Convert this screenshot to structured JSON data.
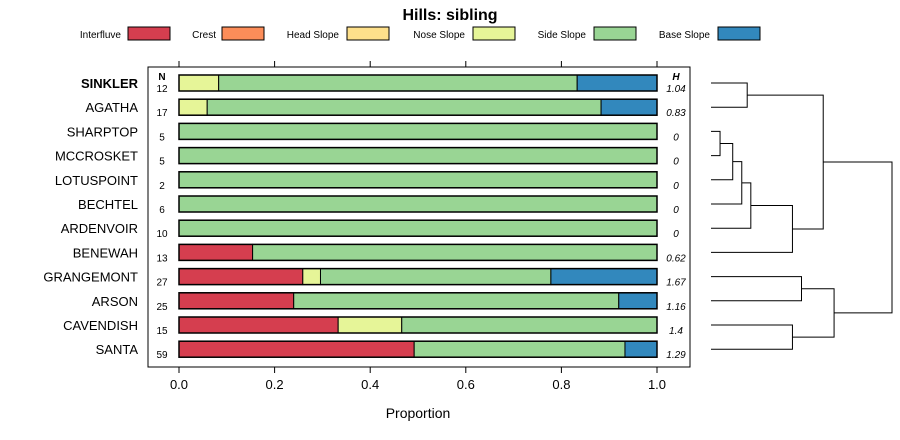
{
  "chart_data": {
    "type": "bar",
    "orientation": "horizontal",
    "stacked": true,
    "title": "Hills: sibling",
    "xlabel": "Proportion",
    "ylabel": "",
    "xlim": [
      0,
      1
    ],
    "x_ticks": [
      "0.0",
      "0.2",
      "0.4",
      "0.6",
      "0.8",
      "1.0"
    ],
    "x_tick_values": [
      0,
      0.2,
      0.4,
      0.6,
      0.8,
      1.0
    ],
    "n_header": "N",
    "h_header": "H",
    "highlight_category": "SINKLER",
    "legend_position": "top",
    "legend": [
      {
        "name": "Interfluve",
        "color": "#D53E4F"
      },
      {
        "name": "Crest",
        "color": "#FC8D59"
      },
      {
        "name": "Head Slope",
        "color": "#FEE08B"
      },
      {
        "name": "Nose Slope",
        "color": "#E6F598"
      },
      {
        "name": "Side Slope",
        "color": "#99D594"
      },
      {
        "name": "Base Slope",
        "color": "#3288BD"
      }
    ],
    "categories": [
      "SINKLER",
      "AGATHA",
      "SHARPTOP",
      "MCCROSKET",
      "LOTUSPOINT",
      "BECHTEL",
      "ARDENVOIR",
      "BENEWAH",
      "GRANGEMONT",
      "ARSON",
      "CAVENDISH",
      "SANTA"
    ],
    "n_values": [
      "12",
      "17",
      "5",
      "5",
      "2",
      "6",
      "10",
      "13",
      "27",
      "25",
      "15",
      "59"
    ],
    "h_values": [
      "1.04",
      "0.83",
      "0",
      "0",
      "0",
      "0",
      "0",
      "0.62",
      "1.67",
      "1.16",
      "1.4",
      "1.29"
    ],
    "series": [
      {
        "name": "Interfluve",
        "values": [
          0,
          0,
          0,
          0,
          0,
          0,
          0,
          0.154,
          0.259,
          0.24,
          0.333,
          0.492
        ]
      },
      {
        "name": "Crest",
        "values": [
          0,
          0,
          0,
          0,
          0,
          0,
          0,
          0,
          0,
          0,
          0,
          0
        ]
      },
      {
        "name": "Head Slope",
        "values": [
          0,
          0,
          0,
          0,
          0,
          0,
          0,
          0,
          0,
          0,
          0,
          0
        ]
      },
      {
        "name": "Nose Slope",
        "values": [
          0.083,
          0.059,
          0,
          0,
          0,
          0,
          0,
          0,
          0.037,
          0,
          0.133,
          0
        ]
      },
      {
        "name": "Side Slope",
        "values": [
          0.75,
          0.824,
          1,
          1,
          1,
          1,
          1,
          0.846,
          0.482,
          0.68,
          0.534,
          0.441
        ]
      },
      {
        "name": "Base Slope",
        "values": [
          0.167,
          0.117,
          0,
          0,
          0,
          0,
          0,
          0,
          0.222,
          0.08,
          0,
          0.067
        ]
      }
    ],
    "dendrogram": {
      "leaves": [
        "SINKLER",
        "AGATHA",
        "SHARPTOP",
        "MCCROSKET",
        "LOTUSPOINT",
        "BECHTEL",
        "ARDENVOIR",
        "BENEWAH",
        "GRANGEMONT",
        "ARSON",
        "CAVENDISH",
        "SANTA"
      ],
      "merges": [
        [
          2,
          3,
          0.05
        ],
        [
          12,
          4,
          0.12
        ],
        [
          13,
          5,
          0.17
        ],
        [
          14,
          6,
          0.22
        ],
        [
          0,
          1,
          0.2
        ],
        [
          15,
          7,
          0.45
        ],
        [
          8,
          9,
          0.5
        ],
        [
          10,
          11,
          0.45
        ],
        [
          16,
          17,
          0.62
        ],
        [
          18,
          19,
          0.68
        ],
        [
          20,
          21,
          1.0
        ]
      ]
    }
  }
}
